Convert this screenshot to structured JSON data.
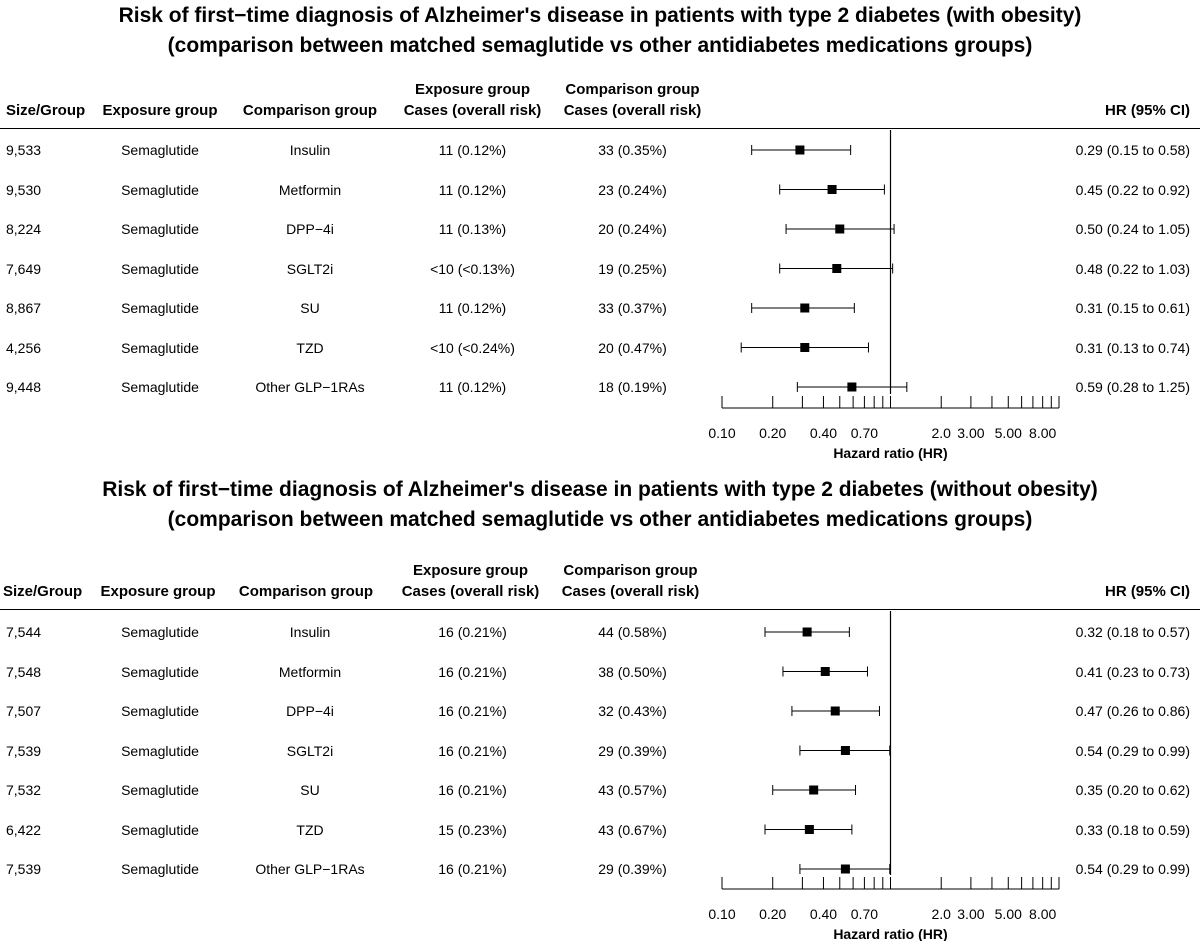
{
  "headers": {
    "size": "Size/Group",
    "exposure": "Exposure group",
    "comparison": "Comparison group",
    "exposure_cases_l1": "Exposure group",
    "exposure_cases_l2": "Cases (overall risk)",
    "comparison_cases_l1": "Comparison group",
    "comparison_cases_l2": "Cases (overall risk)",
    "hr": "HR (95% CI)"
  },
  "chart_data": [
    {
      "type": "forest",
      "title_line1": "Risk of first−time diagnosis of Alzheimer's disease in patients with type 2 diabetes (with obesity)",
      "title_line2": "(comparison between matched semaglutide vs other antidiabetes medications groups)",
      "xlabel": "Hazard ratio (HR)",
      "xscale": "log",
      "xlim": [
        0.1,
        10
      ],
      "reference_line": 1,
      "tick_labels": [
        "0.10",
        "0.20",
        "0.40",
        "0.70",
        "2.0",
        "3.00",
        "5.00",
        "8.00"
      ],
      "tick_values": [
        0.1,
        0.2,
        0.4,
        0.7,
        2.0,
        3.0,
        5.0,
        8.0
      ],
      "rows": [
        {
          "size": "9,533",
          "exposure": "Semaglutide",
          "comparison": "Insulin",
          "exp_cases": "11 (0.12%)",
          "comp_cases": "33 (0.35%)",
          "hr": 0.29,
          "lo": 0.15,
          "hi": 0.58,
          "hr_text": "0.29 (0.15 to 0.58)"
        },
        {
          "size": "9,530",
          "exposure": "Semaglutide",
          "comparison": "Metformin",
          "exp_cases": "11 (0.12%)",
          "comp_cases": "23 (0.24%)",
          "hr": 0.45,
          "lo": 0.22,
          "hi": 0.92,
          "hr_text": "0.45 (0.22 to 0.92)"
        },
        {
          "size": "8,224",
          "exposure": "Semaglutide",
          "comparison": "DPP−4i",
          "exp_cases": "11 (0.13%)",
          "comp_cases": "20 (0.24%)",
          "hr": 0.5,
          "lo": 0.24,
          "hi": 1.05,
          "hr_text": "0.50 (0.24 to 1.05)"
        },
        {
          "size": "7,649",
          "exposure": "Semaglutide",
          "comparison": "SGLT2i",
          "exp_cases": "<10 (<0.13%)",
          "comp_cases": "19 (0.25%)",
          "hr": 0.48,
          "lo": 0.22,
          "hi": 1.03,
          "hr_text": "0.48 (0.22 to 1.03)"
        },
        {
          "size": "8,867",
          "exposure": "Semaglutide",
          "comparison": "SU",
          "exp_cases": "11 (0.12%)",
          "comp_cases": "33 (0.37%)",
          "hr": 0.31,
          "lo": 0.15,
          "hi": 0.61,
          "hr_text": "0.31 (0.15 to 0.61)"
        },
        {
          "size": "4,256",
          "exposure": "Semaglutide",
          "comparison": "TZD",
          "exp_cases": "<10 (<0.24%)",
          "comp_cases": "20 (0.47%)",
          "hr": 0.31,
          "lo": 0.13,
          "hi": 0.74,
          "hr_text": "0.31 (0.13 to 0.74)"
        },
        {
          "size": "9,448",
          "exposure": "Semaglutide",
          "comparison": "Other GLP−1RAs",
          "exp_cases": "11 (0.12%)",
          "comp_cases": "18 (0.19%)",
          "hr": 0.59,
          "lo": 0.28,
          "hi": 1.25,
          "hr_text": "0.59 (0.28 to 1.25)"
        }
      ]
    },
    {
      "type": "forest",
      "title_line1": "Risk of first−time diagnosis of Alzheimer's disease in patients with type 2 diabetes (without obesity)",
      "title_line2": "(comparison between matched semaglutide vs other antidiabetes medications groups)",
      "xlabel": "Hazard ratio (HR)",
      "xscale": "log",
      "xlim": [
        0.1,
        10
      ],
      "reference_line": 1,
      "tick_labels": [
        "0.10",
        "0.20",
        "0.40",
        "0.70",
        "2.0",
        "3.00",
        "5.00",
        "8.00"
      ],
      "tick_values": [
        0.1,
        0.2,
        0.4,
        0.7,
        2.0,
        3.0,
        5.0,
        8.0
      ],
      "rows": [
        {
          "size": "7,544",
          "exposure": "Semaglutide",
          "comparison": "Insulin",
          "exp_cases": "16 (0.21%)",
          "comp_cases": "44 (0.58%)",
          "hr": 0.32,
          "lo": 0.18,
          "hi": 0.57,
          "hr_text": "0.32 (0.18 to 0.57)"
        },
        {
          "size": "7,548",
          "exposure": "Semaglutide",
          "comparison": "Metformin",
          "exp_cases": "16 (0.21%)",
          "comp_cases": "38 (0.50%)",
          "hr": 0.41,
          "lo": 0.23,
          "hi": 0.73,
          "hr_text": "0.41 (0.23 to 0.73)"
        },
        {
          "size": "7,507",
          "exposure": "Semaglutide",
          "comparison": "DPP−4i",
          "exp_cases": "16 (0.21%)",
          "comp_cases": "32 (0.43%)",
          "hr": 0.47,
          "lo": 0.26,
          "hi": 0.86,
          "hr_text": "0.47 (0.26 to 0.86)"
        },
        {
          "size": "7,539",
          "exposure": "Semaglutide",
          "comparison": "SGLT2i",
          "exp_cases": "16 (0.21%)",
          "comp_cases": "29 (0.39%)",
          "hr": 0.54,
          "lo": 0.29,
          "hi": 0.99,
          "hr_text": "0.54 (0.29 to 0.99)"
        },
        {
          "size": "7,532",
          "exposure": "Semaglutide",
          "comparison": "SU",
          "exp_cases": "16 (0.21%)",
          "comp_cases": "43 (0.57%)",
          "hr": 0.35,
          "lo": 0.2,
          "hi": 0.62,
          "hr_text": "0.35 (0.20 to 0.62)"
        },
        {
          "size": "6,422",
          "exposure": "Semaglutide",
          "comparison": "TZD",
          "exp_cases": "15 (0.23%)",
          "comp_cases": "43 (0.67%)",
          "hr": 0.33,
          "lo": 0.18,
          "hi": 0.59,
          "hr_text": "0.33 (0.18 to 0.59)"
        },
        {
          "size": "7,539",
          "exposure": "Semaglutide",
          "comparison": "Other GLP−1RAs",
          "exp_cases": "16 (0.21%)",
          "comp_cases": "29 (0.39%)",
          "hr": 0.54,
          "lo": 0.29,
          "hi": 0.99,
          "hr_text": "0.54 (0.29 to 0.99)"
        }
      ]
    }
  ]
}
